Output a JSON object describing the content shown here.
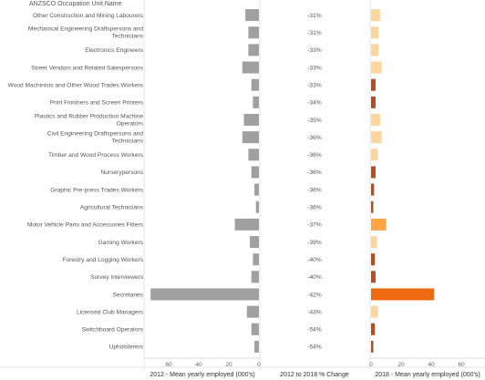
{
  "header": {
    "column_title": "ANZSCO Occupation Unit Name"
  },
  "footer": {
    "left_label": "2012 - Mean yearly employed (000's)",
    "mid_label": "2012 to 2018 % Change",
    "right_label": "2018 - Mean yearly employed (000's)"
  },
  "chart_data": {
    "type": "bar",
    "categories": [
      "Other Construction and Mining Labourers",
      "Mechanical Engineering Draftspersons and Technicians",
      "Electronics Engineers",
      "Street Vendors and Related Salespersons",
      "Wood Machinists and Other Wood Trades Workers",
      "Print Finishers and Screen Printers",
      "Plastics and Rubber Production Machine Operators",
      "Civil Engineering Draftspersons and Technicians",
      "Timber and Wood Process Workers",
      "Nurserypersons",
      "Graphic Pre-press Trades Workers",
      "Agricultural Technicians",
      "Motor Vehicle Parts and Accessories Fitters",
      "Gaming Workers",
      "Forestry and Logging Workers",
      "Survey Interviewers",
      "Secretaries",
      "Licensed Club Managers",
      "Switchboard Operators",
      "Upholsterers"
    ],
    "series": [
      {
        "name": "2012 - Mean yearly employed (000's)",
        "values": [
          9,
          7,
          7,
          11,
          5,
          4,
          10,
          11,
          7,
          5,
          3,
          2,
          16,
          6,
          4,
          5,
          72,
          8,
          5,
          3
        ]
      },
      {
        "name": "2012 to 2018 % Change",
        "labels": [
          "-31%",
          "-31%",
          "-33%",
          "-33%",
          "-33%",
          "-34%",
          "-35%",
          "-36%",
          "-36%",
          "-36%",
          "-36%",
          "-36%",
          "-37%",
          "-39%",
          "-40%",
          "-40%",
          "-42%",
          "-43%",
          "-54%",
          "-54%"
        ]
      },
      {
        "name": "2018 - Mean yearly employed (000's)",
        "values": [
          6,
          5,
          5,
          7,
          3,
          3,
          6,
          7,
          4.5,
          3,
          2,
          1.5,
          10,
          4,
          2.5,
          3,
          42,
          4.5,
          2.5,
          1.5
        ]
      }
    ],
    "left_axis": {
      "ticks": [
        "60",
        "40",
        "20",
        "0"
      ],
      "tick_values": [
        60,
        40,
        20,
        0
      ],
      "domain": [
        0,
        75
      ]
    },
    "right_axis": {
      "ticks": [
        "0",
        "20",
        "40",
        "60"
      ],
      "tick_values": [
        0,
        20,
        40,
        60
      ],
      "domain": [
        0,
        75
      ]
    },
    "colors": {
      "left_bar": "#a0a0a0",
      "right_bar_light": "#ffd59e",
      "right_bar_mid": "#fda545",
      "right_bar_dark": "#ee6a10",
      "right_bar_darkest": "#b84c1f"
    }
  }
}
